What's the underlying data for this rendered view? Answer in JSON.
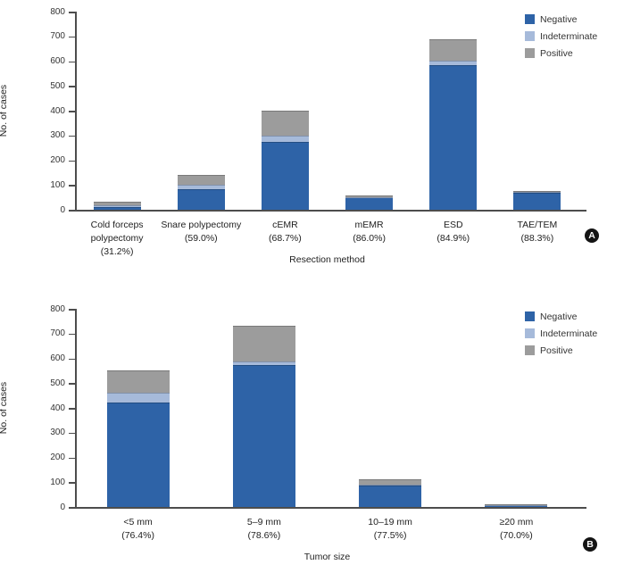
{
  "figure": {
    "ylabel": "No. of cases",
    "legend_labels": [
      "Negative",
      "Indeterminate",
      "Positive"
    ],
    "colors": {
      "negative": "#2e63a7",
      "indeterminate": "#a6bada",
      "positive": "#9c9c9c",
      "axis": "#4d4d4d",
      "badge_bg": "#141414",
      "badge_text": "#ffffff"
    }
  },
  "chart_data": [
    {
      "id": "A",
      "panel_label": "A",
      "type": "bar",
      "stacked": true,
      "xlabel": "Resection method",
      "ylabel": "No. of cases",
      "ylim": [
        0,
        800
      ],
      "yticks": [
        0,
        100,
        200,
        300,
        400,
        500,
        600,
        700,
        800
      ],
      "grid": false,
      "legend_position": "top-right",
      "categories": [
        "Cold forceps polypectomy",
        "Snare polypectomy",
        "cEMR",
        "mEMR",
        "ESD",
        "TAE/TEM"
      ],
      "category_percentages": [
        "(31.2%)",
        "(59.0%)",
        "(68.7%)",
        "(86.0%)",
        "(84.9%)",
        "(88.3%)"
      ],
      "series": [
        {
          "name": "Negative",
          "color": "#2e63a7",
          "values": [
            10,
            82,
            275,
            49,
            585,
            68
          ]
        },
        {
          "name": "Indeterminate",
          "color": "#a6bada",
          "values": [
            7,
            18,
            26,
            3,
            16,
            3
          ]
        },
        {
          "name": "Positive",
          "color": "#9c9c9c",
          "values": [
            15,
            39,
            99,
            5,
            88,
            6
          ]
        }
      ],
      "totals": [
        32,
        139,
        400,
        57,
        689,
        77
      ]
    },
    {
      "id": "B",
      "panel_label": "B",
      "type": "bar",
      "stacked": true,
      "xlabel": "Tumor size",
      "ylabel": "No. of cases",
      "ylim": [
        0,
        800
      ],
      "yticks": [
        0,
        100,
        200,
        300,
        400,
        500,
        600,
        700,
        800
      ],
      "grid": false,
      "legend_position": "top-right",
      "categories": [
        "<5 mm",
        "5–9 mm",
        "10–19 mm",
        "≥20 mm"
      ],
      "category_percentages": [
        "(76.4%)",
        "(78.6%)",
        "(77.5%)",
        "(70.0%)"
      ],
      "series": [
        {
          "name": "Negative",
          "color": "#2e63a7",
          "values": [
            420,
            574,
            86,
            7
          ]
        },
        {
          "name": "Indeterminate",
          "color": "#a6bada",
          "values": [
            42,
            14,
            3,
            1
          ]
        },
        {
          "name": "Positive",
          "color": "#9c9c9c",
          "values": [
            88,
            142,
            22,
            2
          ]
        }
      ],
      "totals": [
        550,
        730,
        111,
        10
      ]
    }
  ]
}
